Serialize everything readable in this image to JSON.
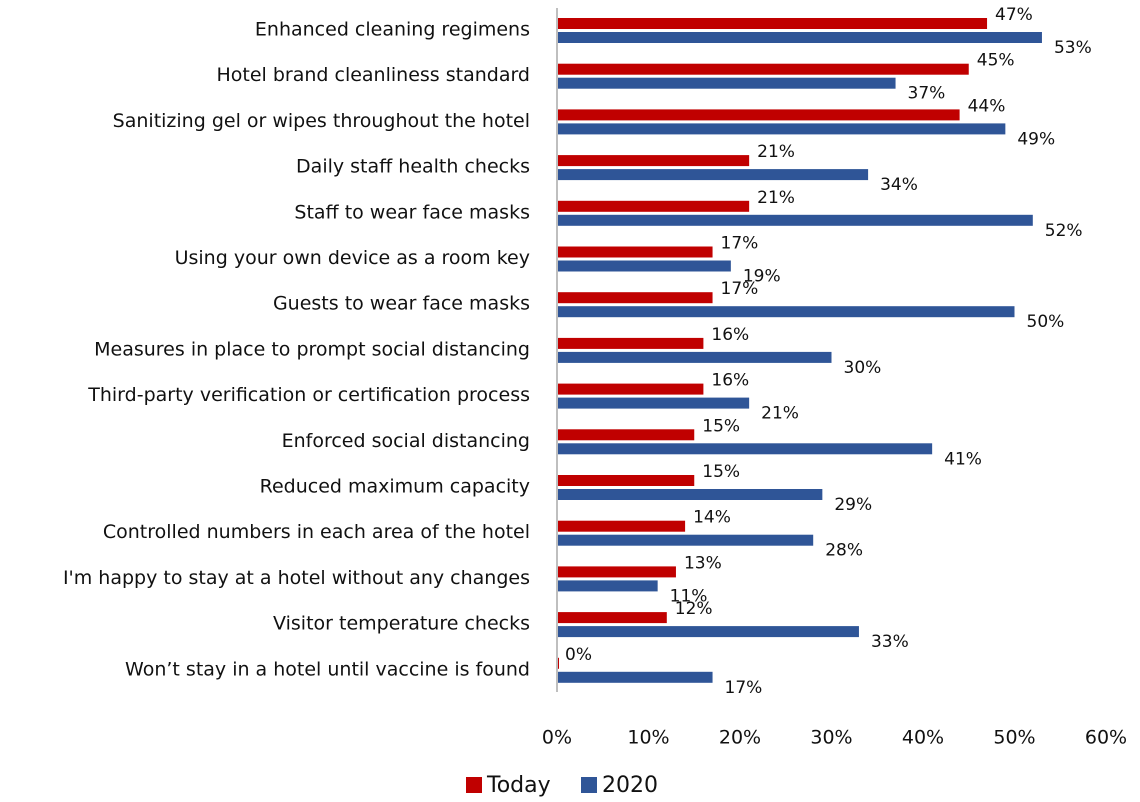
{
  "chart_data": {
    "type": "hbar",
    "categories": [
      "Enhanced cleaning regimens",
      "Hotel brand cleanliness standard",
      "Sanitizing gel or wipes throughout the hotel",
      "Daily staff health checks",
      "Staff to wear face masks",
      "Using your own device as a room key",
      "Guests to wear face masks",
      "Measures in place to prompt social distancing",
      "Third-party verification or certification process",
      "Enforced social distancing",
      "Reduced maximum capacity",
      "Controlled numbers in each area of the hotel",
      "I'm happy to stay at a hotel without any changes",
      "Visitor temperature checks",
      "Won’t stay in a hotel until vaccine is found"
    ],
    "series": [
      {
        "name": "Today",
        "color": "#c00000",
        "values": [
          47,
          45,
          44,
          21,
          21,
          17,
          17,
          16,
          16,
          15,
          15,
          14,
          13,
          12,
          0
        ],
        "value_labels": [
          "47%",
          "45%",
          "44%",
          "21%",
          "21%",
          "17%",
          "17%",
          "16%",
          "16%",
          "15%",
          "15%",
          "14%",
          "13%",
          "12%",
          "0%"
        ]
      },
      {
        "name": "2020",
        "color": "#2f5597",
        "values": [
          53,
          37,
          49,
          34,
          52,
          19,
          50,
          30,
          21,
          41,
          29,
          28,
          11,
          33,
          17
        ],
        "value_labels": [
          "53%",
          "37%",
          "49%",
          "34%",
          "52%",
          "19%",
          "50%",
          "30%",
          "21%",
          "41%",
          "29%",
          "28%",
          "11%",
          "33%",
          "17%"
        ]
      }
    ],
    "xlim": [
      0,
      60
    ],
    "xticks": [
      {
        "value": 0,
        "label": "0%"
      },
      {
        "value": 10,
        "label": "10%"
      },
      {
        "value": 20,
        "label": "20%"
      },
      {
        "value": 30,
        "label": "30%"
      },
      {
        "value": 40,
        "label": "40%"
      },
      {
        "value": 50,
        "label": "50%"
      },
      {
        "value": 60,
        "label": "60%"
      }
    ],
    "grid": false,
    "legend": "bottom"
  }
}
